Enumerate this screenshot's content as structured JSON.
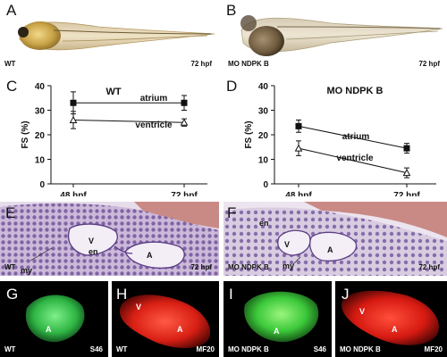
{
  "figure": {
    "panel_letters": [
      "A",
      "B",
      "C",
      "D",
      "E",
      "F",
      "G",
      "H",
      "I",
      "J"
    ],
    "panelA": {
      "left_caption": "WT",
      "right_caption": "72 hpf"
    },
    "panelB": {
      "left_caption": "MO NDPK B",
      "right_caption": "72 hpf"
    },
    "panelE": {
      "left_caption": "WT",
      "right_caption": "72 hpf",
      "labels": [
        "V",
        "en",
        "my",
        "A"
      ]
    },
    "panelF": {
      "left_caption": "MO NDPK B",
      "right_caption": "72 hpf",
      "labels": [
        "en",
        "V",
        "my",
        "A"
      ]
    },
    "panelG": {
      "left_caption": "WT",
      "right_caption": "S46",
      "label": "A"
    },
    "panelH": {
      "left_caption": "WT",
      "right_caption": "MF20",
      "labels": [
        "V",
        "A"
      ]
    },
    "panelI": {
      "left_caption": "MO NDPK B",
      "right_caption": "S46",
      "label": "A"
    },
    "panelJ": {
      "left_caption": "MO NDPK B",
      "right_caption": "MF20",
      "labels": [
        "V",
        "A"
      ]
    },
    "colors": {
      "green_stain": "#3fcf55",
      "red_stain": "#e0241a",
      "histology_stain": "#8c6fb0"
    }
  },
  "chart_data": [
    {
      "type": "line",
      "title": "WT",
      "xlabel": "",
      "ylabel": "FS (%)",
      "categories": [
        "48 hpf",
        "72 hpf"
      ],
      "ylim": [
        0,
        40
      ],
      "yticks": [
        0,
        10,
        20,
        30,
        40
      ],
      "series": [
        {
          "name": "atrium",
          "marker": "square",
          "values": [
            33,
            33
          ],
          "errors": [
            4.5,
            3
          ]
        },
        {
          "name": "ventricle",
          "marker": "triangle",
          "values": [
            26,
            25
          ],
          "errors": [
            3.5,
            1.5
          ]
        }
      ]
    },
    {
      "type": "line",
      "title": "MO NDPK B",
      "xlabel": "",
      "ylabel": "FS (%)",
      "categories": [
        "48 hpf",
        "72 hpf"
      ],
      "ylim": [
        0,
        40
      ],
      "yticks": [
        0,
        10,
        20,
        30,
        40
      ],
      "series": [
        {
          "name": "atrium",
          "marker": "square",
          "values": [
            23.5,
            14.5
          ],
          "errors": [
            2.5,
            2
          ]
        },
        {
          "name": "ventricle",
          "marker": "triangle",
          "values": [
            14.5,
            4.5
          ],
          "errors": [
            3,
            2
          ]
        }
      ]
    }
  ]
}
